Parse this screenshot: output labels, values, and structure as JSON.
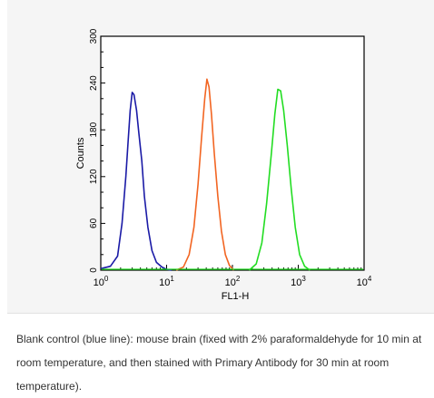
{
  "chart_data": {
    "type": "line",
    "title": "",
    "xlabel": "FL1-H",
    "ylabel": "Counts",
    "x_scale": "log",
    "xlim": [
      1,
      10000
    ],
    "ylim": [
      0,
      300
    ],
    "x_ticks": [
      {
        "value": 1,
        "base": "10",
        "exp": "0"
      },
      {
        "value": 10,
        "base": "10",
        "exp": "1"
      },
      {
        "value": 100,
        "base": "10",
        "exp": "2"
      },
      {
        "value": 1000,
        "base": "10",
        "exp": "3"
      },
      {
        "value": 10000,
        "base": "10",
        "exp": "4"
      }
    ],
    "y_ticks": [
      "0",
      "60",
      "120",
      "180",
      "240",
      "300"
    ],
    "grid": false,
    "series": [
      {
        "color": "#1a1aa6",
        "x": [
          1.0,
          1.4,
          1.8,
          2.1,
          2.4,
          2.6,
          2.8,
          3.0,
          3.2,
          3.5,
          3.8,
          4.2,
          4.6,
          5.2,
          6.0,
          7.0,
          8.5,
          10.0,
          12.0
        ],
        "y": [
          2,
          5,
          18,
          60,
          120,
          165,
          205,
          228,
          225,
          205,
          175,
          140,
          95,
          55,
          25,
          10,
          4,
          1,
          0
        ]
      },
      {
        "color": "#f26522",
        "x": [
          14,
          18,
          22,
          26,
          30,
          34,
          38,
          41,
          44,
          48,
          53,
          60,
          68,
          78,
          90,
          105
        ],
        "y": [
          0,
          4,
          20,
          55,
          110,
          170,
          220,
          245,
          235,
          200,
          150,
          95,
          50,
          20,
          6,
          0
        ]
      },
      {
        "color": "#22dd22",
        "x": [
          180,
          230,
          280,
          330,
          390,
          440,
          490,
          540,
          600,
          680,
          780,
          900,
          1050,
          1250,
          1500
        ],
        "y": [
          0,
          8,
          35,
          85,
          150,
          200,
          232,
          230,
          205,
          160,
          105,
          55,
          20,
          5,
          0
        ]
      }
    ]
  },
  "caption": {
    "text": "Blank control (blue line): mouse brain (fixed with 2% paraformaldehyde for 10 min at room temperature, and then stained with Primary Antibody for 30 min at room temperature)."
  }
}
